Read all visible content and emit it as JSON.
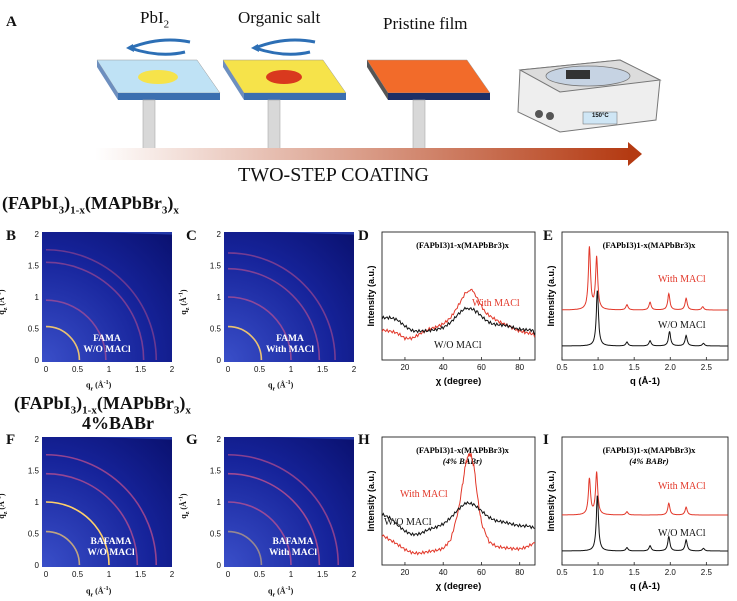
{
  "panel_a": {
    "label": "A",
    "steps": [
      "PbI",
      "Organic salt",
      "Pristine film"
    ],
    "step1_sub": "2",
    "arrow_text": "TWO-STEP COATING",
    "hotplate_temp": "150°C",
    "colors": {
      "substrate_top": "#bfe2f5",
      "yellow": "#f6e34a",
      "orange": "#f26b2a",
      "red_dot": "#d9391e"
    }
  },
  "rows": {
    "top_formula": {
      "main": "(FAPbI",
      "s1": "3",
      "mid": ")",
      "s2": "1-x",
      "mid2": "(MAPbBr",
      "s3": "3",
      "end": ")",
      "s4": "x"
    },
    "bottom_formula": {
      "main": "(FAPbI",
      "s1": "3",
      "mid": ")",
      "s2": "1-x",
      "mid2": "(MAPbBr",
      "s3": "3",
      "end": ")",
      "s4": "x",
      "line2": "4%BABr"
    }
  },
  "giwaxs": {
    "axis_x": "q",
    "axis_x_sub": "r",
    "axis_y": "q",
    "axis_y_sub": "z",
    "unit": "(Å",
    "unit_sup": "-1",
    "unit_end": ")",
    "panels": [
      {
        "label": "B",
        "text1": "FAMA",
        "text2": "W/O MACl"
      },
      {
        "label": "C",
        "text1": "FAMA",
        "text2": "With MACl"
      },
      {
        "label": "F",
        "text1": "BAFAMA",
        "text2": "W/O MACl"
      },
      {
        "label": "G",
        "text1": "BAFAMA",
        "text2": "With MACl"
      }
    ],
    "ticks_x": [
      "0",
      "0.5",
      "1",
      "1.5",
      "2"
    ],
    "ticks_y": [
      "0",
      "0.5",
      "1",
      "1.5",
      "2"
    ]
  },
  "chart_data": [
    {
      "id": "D",
      "type": "line",
      "title": "(FAPbI3)1-x(MAPbBr3)x",
      "xlabel": "χ (degree)",
      "ylabel": "Intensity (a.u.)",
      "xlim": [
        8,
        88
      ],
      "xticks": [
        20,
        40,
        60,
        80
      ],
      "series": [
        {
          "name": "With MACl",
          "color": "#e2382a",
          "x": [
            8,
            12,
            16,
            20,
            24,
            28,
            32,
            36,
            40,
            44,
            48,
            52,
            55,
            58,
            62,
            66,
            70,
            74,
            78,
            82,
            86,
            88
          ],
          "y": [
            0.25,
            0.23,
            0.21,
            0.18,
            0.19,
            0.22,
            0.24,
            0.26,
            0.3,
            0.36,
            0.45,
            0.55,
            0.58,
            0.5,
            0.4,
            0.35,
            0.3,
            0.27,
            0.25,
            0.24,
            0.22,
            0.2
          ]
        },
        {
          "name": "W/O MACl",
          "color": "#111111",
          "x": [
            8,
            12,
            16,
            20,
            24,
            28,
            32,
            36,
            40,
            44,
            48,
            52,
            55,
            58,
            62,
            66,
            70,
            74,
            78,
            82,
            86,
            88
          ],
          "y": [
            0.35,
            0.34,
            0.32,
            0.28,
            0.25,
            0.24,
            0.23,
            0.24,
            0.27,
            0.32,
            0.38,
            0.42,
            0.42,
            0.39,
            0.34,
            0.3,
            0.28,
            0.27,
            0.26,
            0.26,
            0.25,
            0.22
          ]
        }
      ]
    },
    {
      "id": "E",
      "type": "line",
      "title": "(FAPbI3)1-x(MAPbBr3)x",
      "xlabel": "q (Å-1)",
      "ylabel": "Intensity (a.u.)",
      "xlim": [
        0.5,
        2.8
      ],
      "xticks": [
        0.5,
        1.0,
        1.5,
        2.0,
        2.5
      ],
      "series": [
        {
          "name": "With MACl",
          "color": "#e2382a",
          "offset": 0.55,
          "peaks": [
            [
              0.88,
              0.95
            ],
            [
              0.98,
              0.8
            ],
            [
              1.4,
              0.08
            ],
            [
              1.72,
              0.12
            ],
            [
              1.98,
              0.25
            ],
            [
              2.22,
              0.18
            ],
            [
              2.45,
              0.05
            ]
          ]
        },
        {
          "name": "W/O MACl",
          "color": "#111111",
          "offset": 0.0,
          "peaks": [
            [
              0.99,
              0.85
            ],
            [
              1.4,
              0.06
            ],
            [
              1.72,
              0.08
            ],
            [
              1.99,
              0.22
            ],
            [
              2.22,
              0.16
            ],
            [
              2.46,
              0.04
            ]
          ]
        }
      ]
    },
    {
      "id": "H",
      "type": "line",
      "title": "(FAPbI3)1-x(MAPbBr3)x",
      "title2": "(4% BABr)",
      "xlabel": "χ (degree)",
      "ylabel": "Intensity (a.u.)",
      "xlim": [
        8,
        88
      ],
      "xticks": [
        20,
        40,
        60,
        80
      ],
      "series": [
        {
          "name": "With MACl",
          "color": "#e2382a",
          "x": [
            8,
            12,
            16,
            20,
            24,
            28,
            32,
            36,
            40,
            44,
            48,
            50,
            52,
            54,
            56,
            58,
            60,
            64,
            68,
            72,
            76,
            80,
            84,
            88
          ],
          "y": [
            0.25,
            0.2,
            0.16,
            0.13,
            0.11,
            0.1,
            0.1,
            0.11,
            0.14,
            0.22,
            0.45,
            0.65,
            0.85,
            0.92,
            0.82,
            0.55,
            0.35,
            0.2,
            0.15,
            0.13,
            0.13,
            0.14,
            0.16,
            0.18
          ]
        },
        {
          "name": "W/O MACl",
          "color": "#111111",
          "x": [
            8,
            12,
            16,
            20,
            24,
            28,
            32,
            36,
            40,
            44,
            48,
            52,
            56,
            60,
            64,
            68,
            72,
            76,
            80,
            84,
            88
          ],
          "y": [
            0.42,
            0.38,
            0.32,
            0.28,
            0.26,
            0.26,
            0.28,
            0.3,
            0.34,
            0.4,
            0.46,
            0.5,
            0.49,
            0.45,
            0.4,
            0.36,
            0.34,
            0.33,
            0.33,
            0.33,
            0.3
          ]
        }
      ]
    },
    {
      "id": "I",
      "type": "line",
      "title": "(FAPbI3)1-x(MAPbBr3)x",
      "title2": "(4% BABr)",
      "xlabel": "q (Å-1)",
      "ylabel": "Intensity (a.u.)",
      "xlim": [
        0.5,
        2.8
      ],
      "xticks": [
        0.5,
        1.0,
        1.5,
        2.0,
        2.5
      ],
      "series": [
        {
          "name": "With MACl",
          "color": "#e2382a",
          "offset": 0.55,
          "peaks": [
            [
              0.88,
              0.55
            ],
            [
              0.98,
              0.65
            ],
            [
              1.4,
              0.05
            ],
            [
              1.98,
              0.18
            ],
            [
              2.22,
              0.12
            ]
          ]
        },
        {
          "name": "W/O MACl",
          "color": "#111111",
          "offset": 0.0,
          "peaks": [
            [
              0.99,
              0.85
            ],
            [
              1.4,
              0.05
            ],
            [
              1.72,
              0.08
            ],
            [
              1.98,
              0.22
            ],
            [
              2.22,
              0.17
            ],
            [
              2.46,
              0.04
            ]
          ]
        }
      ]
    }
  ]
}
